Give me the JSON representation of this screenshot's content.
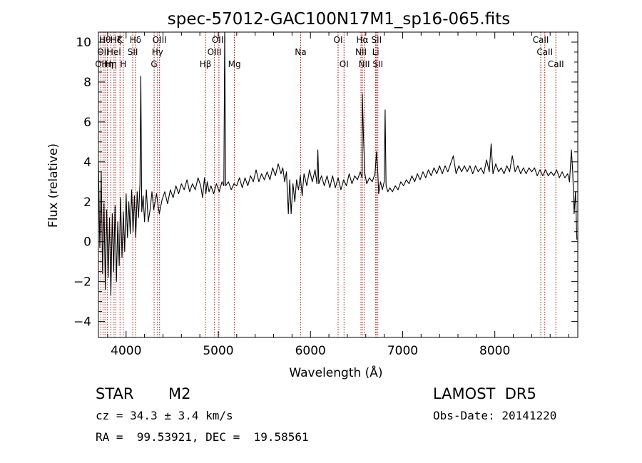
{
  "chart_data": {
    "type": "line",
    "title": "spec-57012-GAC100N17M1_sp16-065.fits",
    "xlabel": "Wavelength (Å)",
    "ylabel": "Flux (relative)",
    "xlim": [
      3700,
      8900
    ],
    "ylim": [
      -4.8,
      10.5
    ],
    "xticks": [
      4000,
      5000,
      6000,
      7000,
      8000
    ],
    "yticks": [
      -4,
      -2,
      0,
      2,
      4,
      6,
      8,
      10
    ],
    "grid": false,
    "series": [
      {
        "points": [
          [
            3700,
            4.0
          ],
          [
            3715,
            -0.3
          ],
          [
            3730,
            3.5
          ],
          [
            3745,
            -1.6
          ],
          [
            3760,
            1.9
          ],
          [
            3775,
            -2.4
          ],
          [
            3790,
            1.6
          ],
          [
            3805,
            -1.8
          ],
          [
            3820,
            1.2
          ],
          [
            3835,
            -2.7
          ],
          [
            3850,
            1.4
          ],
          [
            3865,
            -1.5
          ],
          [
            3880,
            1.8
          ],
          [
            3895,
            -2.0
          ],
          [
            3910,
            1.0
          ],
          [
            3925,
            -1.2
          ],
          [
            3940,
            2.2
          ],
          [
            3955,
            -0.8
          ],
          [
            3970,
            1.5
          ],
          [
            3985,
            -0.5
          ],
          [
            4000,
            2.4
          ],
          [
            4015,
            0.2
          ],
          [
            4030,
            2.0
          ],
          [
            4045,
            0.4
          ],
          [
            4060,
            2.6
          ],
          [
            4075,
            0.5
          ],
          [
            4090,
            2.3
          ],
          [
            4105,
            0.2
          ],
          [
            4120,
            2.5
          ],
          [
            4135,
            1.2
          ],
          [
            4150,
            2.9
          ],
          [
            4160,
            8.3
          ],
          [
            4170,
            1.5
          ],
          [
            4185,
            2.3
          ],
          [
            4200,
            1.0
          ],
          [
            4220,
            2.6
          ],
          [
            4240,
            1.0
          ],
          [
            4260,
            1.6
          ],
          [
            4280,
            2.5
          ],
          [
            4300,
            1.6
          ],
          [
            4330,
            2.4
          ],
          [
            4360,
            1.4
          ],
          [
            4390,
            2.1
          ],
          [
            4420,
            2.5
          ],
          [
            4450,
            1.9
          ],
          [
            4480,
            2.6
          ],
          [
            4510,
            2.2
          ],
          [
            4540,
            2.8
          ],
          [
            4570,
            2.4
          ],
          [
            4600,
            2.9
          ],
          [
            4630,
            2.6
          ],
          [
            4660,
            3.1
          ],
          [
            4690,
            2.5
          ],
          [
            4720,
            2.9
          ],
          [
            4750,
            2.6
          ],
          [
            4780,
            3.2
          ],
          [
            4810,
            2.8
          ],
          [
            4830,
            2.2
          ],
          [
            4850,
            3.2
          ],
          [
            4865,
            2.4
          ],
          [
            4880,
            3.0
          ],
          [
            4900,
            2.5
          ],
          [
            4920,
            2.8
          ],
          [
            4950,
            2.4
          ],
          [
            4980,
            2.9
          ],
          [
            5010,
            2.5
          ],
          [
            5040,
            3.0
          ],
          [
            5060,
            2.8
          ],
          [
            5070,
            10.5
          ],
          [
            5080,
            2.8
          ],
          [
            5110,
            3.0
          ],
          [
            5140,
            2.6
          ],
          [
            5170,
            2.9
          ],
          [
            5200,
            2.8
          ],
          [
            5230,
            3.2
          ],
          [
            5260,
            2.7
          ],
          [
            5290,
            3.2
          ],
          [
            5320,
            2.8
          ],
          [
            5350,
            3.3
          ],
          [
            5380,
            3.0
          ],
          [
            5410,
            3.6
          ],
          [
            5440,
            3.0
          ],
          [
            5470,
            3.4
          ],
          [
            5500,
            3.1
          ],
          [
            5530,
            3.5
          ],
          [
            5560,
            3.1
          ],
          [
            5590,
            3.7
          ],
          [
            5620,
            3.3
          ],
          [
            5650,
            3.9
          ],
          [
            5680,
            3.4
          ],
          [
            5700,
            3.7
          ],
          [
            5720,
            3.0
          ],
          [
            5740,
            3.5
          ],
          [
            5760,
            1.4
          ],
          [
            5775,
            3.1
          ],
          [
            5790,
            1.4
          ],
          [
            5810,
            2.9
          ],
          [
            5830,
            2.0
          ],
          [
            5850,
            3.1
          ],
          [
            5870,
            2.6
          ],
          [
            5890,
            3.3
          ],
          [
            5910,
            2.3
          ],
          [
            5930,
            3.4
          ],
          [
            5960,
            2.8
          ],
          [
            5990,
            3.6
          ],
          [
            6020,
            3.0
          ],
          [
            6050,
            3.6
          ],
          [
            6070,
            2.9
          ],
          [
            6080,
            4.6
          ],
          [
            6090,
            2.9
          ],
          [
            6120,
            3.3
          ],
          [
            6150,
            2.8
          ],
          [
            6180,
            3.3
          ],
          [
            6210,
            2.7
          ],
          [
            6240,
            3.3
          ],
          [
            6270,
            2.7
          ],
          [
            6300,
            3.2
          ],
          [
            6330,
            2.6
          ],
          [
            6360,
            3.1
          ],
          [
            6390,
            2.8
          ],
          [
            6420,
            3.4
          ],
          [
            6450,
            2.9
          ],
          [
            6480,
            3.3
          ],
          [
            6510,
            3.1
          ],
          [
            6540,
            3.5
          ],
          [
            6560,
            3.2
          ],
          [
            6563,
            7.4
          ],
          [
            6575,
            5.3
          ],
          [
            6590,
            3.4
          ],
          [
            6610,
            2.9
          ],
          [
            6640,
            3.2
          ],
          [
            6670,
            3.0
          ],
          [
            6700,
            3.4
          ],
          [
            6716,
            4.5
          ],
          [
            6731,
            3.4
          ],
          [
            6740,
            2.4
          ],
          [
            6760,
            3.0
          ],
          [
            6780,
            2.6
          ],
          [
            6800,
            3.0
          ],
          [
            6810,
            6.6
          ],
          [
            6820,
            2.8
          ],
          [
            6840,
            2.5
          ],
          [
            6860,
            2.7
          ],
          [
            6890,
            2.5
          ],
          [
            6920,
            2.8
          ],
          [
            6950,
            2.6
          ],
          [
            6980,
            3.0
          ],
          [
            7010,
            2.8
          ],
          [
            7040,
            3.1
          ],
          [
            7070,
            2.9
          ],
          [
            7100,
            3.3
          ],
          [
            7130,
            3.0
          ],
          [
            7160,
            3.4
          ],
          [
            7190,
            3.1
          ],
          [
            7220,
            3.5
          ],
          [
            7250,
            3.2
          ],
          [
            7280,
            3.6
          ],
          [
            7310,
            3.3
          ],
          [
            7340,
            3.7
          ],
          [
            7370,
            3.4
          ],
          [
            7400,
            3.8
          ],
          [
            7430,
            3.4
          ],
          [
            7460,
            3.8
          ],
          [
            7490,
            3.5
          ],
          [
            7520,
            3.9
          ],
          [
            7550,
            4.3
          ],
          [
            7580,
            3.4
          ],
          [
            7610,
            3.8
          ],
          [
            7640,
            3.5
          ],
          [
            7670,
            3.8
          ],
          [
            7700,
            3.5
          ],
          [
            7730,
            3.8
          ],
          [
            7760,
            3.4
          ],
          [
            7790,
            3.8
          ],
          [
            7820,
            3.5
          ],
          [
            7850,
            3.7
          ],
          [
            7880,
            3.4
          ],
          [
            7910,
            4.1
          ],
          [
            7940,
            3.5
          ],
          [
            7960,
            4.9
          ],
          [
            7980,
            3.4
          ],
          [
            8010,
            3.9
          ],
          [
            8040,
            3.5
          ],
          [
            8070,
            3.7
          ],
          [
            8100,
            3.4
          ],
          [
            8130,
            3.8
          ],
          [
            8160,
            3.5
          ],
          [
            8190,
            4.3
          ],
          [
            8220,
            3.5
          ],
          [
            8250,
            3.8
          ],
          [
            8280,
            3.4
          ],
          [
            8310,
            3.7
          ],
          [
            8340,
            3.4
          ],
          [
            8370,
            3.7
          ],
          [
            8400,
            3.5
          ],
          [
            8430,
            3.7
          ],
          [
            8460,
            3.3
          ],
          [
            8490,
            3.6
          ],
          [
            8520,
            3.3
          ],
          [
            8550,
            3.6
          ],
          [
            8580,
            3.3
          ],
          [
            8610,
            3.5
          ],
          [
            8640,
            3.3
          ],
          [
            8670,
            3.6
          ],
          [
            8700,
            3.2
          ],
          [
            8730,
            3.5
          ],
          [
            8760,
            3.2
          ],
          [
            8790,
            3.4
          ],
          [
            8810,
            3.0
          ],
          [
            8830,
            4.6
          ],
          [
            8845,
            3.5
          ],
          [
            8860,
            1.4
          ],
          [
            8875,
            2.5
          ],
          [
            8890,
            0.1
          ]
        ]
      }
    ],
    "line_markers": [
      {
        "wavelength": 3727,
        "label": "OII",
        "row": 2
      },
      {
        "wavelength": 3750,
        "label": "OII",
        "row": 1
      },
      {
        "wavelength": 3771,
        "label": "Hθ",
        "row": 0
      },
      {
        "wavelength": 3798,
        "label": "Hη",
        "row": 2
      },
      {
        "wavelength": 3835,
        "label": "Hη",
        "row": 2
      },
      {
        "wavelength": 3869,
        "label": "HeI",
        "row": 1
      },
      {
        "wavelength": 3889,
        "label": "Hζ",
        "row": 0
      },
      {
        "wavelength": 3934,
        "label": "K",
        "row": 0
      },
      {
        "wavelength": 3969,
        "label": "H",
        "row": 2
      },
      {
        "wavelength": 4072,
        "label": "SII",
        "row": 1
      },
      {
        "wavelength": 4102,
        "label": "Hδ",
        "row": 0
      },
      {
        "wavelength": 4304,
        "label": "G",
        "row": 2
      },
      {
        "wavelength": 4341,
        "label": "Hγ",
        "row": 1
      },
      {
        "wavelength": 4363,
        "label": "OIII",
        "row": 0
      },
      {
        "wavelength": 4861,
        "label": "Hβ",
        "row": 2
      },
      {
        "wavelength": 4959,
        "label": "OIII",
        "row": 1
      },
      {
        "wavelength": 5007,
        "label": "OIII",
        "row": 0
      },
      {
        "wavelength": 5175,
        "label": "Mg",
        "row": 2
      },
      {
        "wavelength": 5893,
        "label": "Na",
        "row": 1
      },
      {
        "wavelength": 6300,
        "label": "OI",
        "row": 0
      },
      {
        "wavelength": 6364,
        "label": "OI",
        "row": 2
      },
      {
        "wavelength": 6548,
        "label": "NII",
        "row": 1
      },
      {
        "wavelength": 6563,
        "label": "Hα",
        "row": 0
      },
      {
        "wavelength": 6583,
        "label": "NII",
        "row": 2
      },
      {
        "wavelength": 6707,
        "label": "Li",
        "row": 1
      },
      {
        "wavelength": 6716,
        "label": "SII",
        "row": 0
      },
      {
        "wavelength": 6731,
        "label": "SII",
        "row": 2
      },
      {
        "wavelength": 8498,
        "label": "CaII",
        "row": 0
      },
      {
        "wavelength": 8542,
        "label": "CaII",
        "row": 1
      },
      {
        "wavelength": 8662,
        "label": "CaII",
        "row": 2
      }
    ],
    "marker_color": "#aa0000",
    "line_color": "#000000"
  },
  "info": {
    "class_label": "STAR",
    "subclass": "M2",
    "survey": "LAMOST  DR5",
    "cz": "cz = 34.3 ± 3.4 km/s",
    "obs_date": "Obs-Date: 20141220",
    "coords": "RA =  99.53921, DEC =  19.58561"
  }
}
